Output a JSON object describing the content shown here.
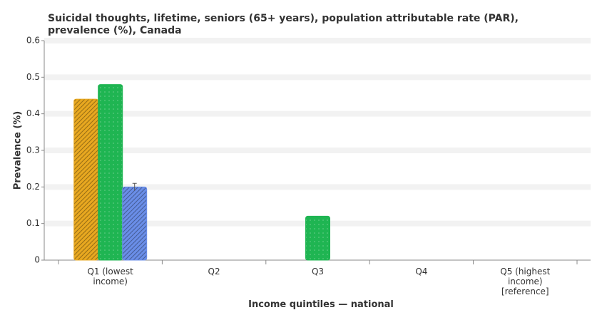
{
  "chart_data": {
    "type": "bar",
    "title": "Suicidal thoughts, lifetime, seniors (65+ years), population attributable rate (PAR), prevalence (%), Canada",
    "x_label": "Income quintiles — national",
    "y_label": "Prevalence (%)",
    "categories": [
      "Q1 (lowest income)",
      "Q2",
      "Q3",
      "Q4",
      "Q5 (highest income) [reference]"
    ],
    "series": [
      {
        "color": "#e8a820",
        "values": [
          0.44,
          null,
          null,
          null,
          null
        ]
      },
      {
        "color": "#1fb552",
        "values": [
          0.48,
          null,
          0.12,
          null,
          null
        ]
      },
      {
        "color": "#6a8ee8",
        "values": [
          0.2,
          null,
          null,
          null,
          null
        ],
        "errors": [
          0.01,
          null,
          null,
          null,
          null
        ]
      }
    ],
    "ylim": [
      0,
      0.6
    ],
    "yticks": [
      0,
      0.1,
      0.2,
      0.3,
      0.4,
      0.5,
      0.6
    ],
    "grid": true
  }
}
